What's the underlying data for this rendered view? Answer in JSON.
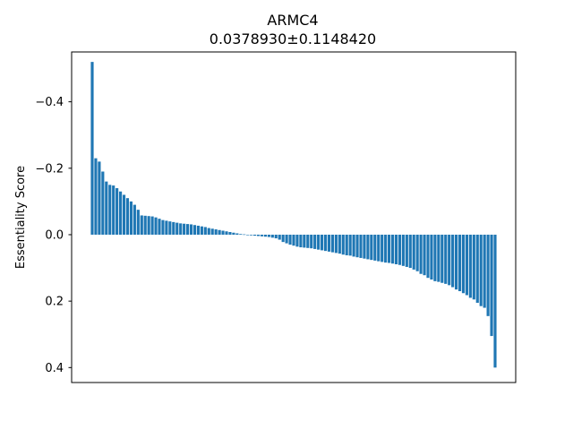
{
  "chart_data": {
    "type": "bar",
    "title": "ARMC4",
    "subtitle": "0.0378930±0.1148420",
    "xlabel": "",
    "ylabel": "Essentiality Score",
    "y_inverted": true,
    "ylim": [
      -0.55,
      0.445
    ],
    "yticks": [
      -0.4,
      -0.2,
      0.0,
      0.2,
      0.4
    ],
    "ytick_labels": [
      "−0.4",
      "−0.2",
      "0.0",
      "0.2",
      "0.4"
    ],
    "show_xticks": false,
    "grid": false,
    "bar_color": "#1f77b4",
    "values": [
      -0.52,
      -0.23,
      -0.22,
      -0.19,
      -0.16,
      -0.15,
      -0.148,
      -0.14,
      -0.13,
      -0.12,
      -0.11,
      -0.1,
      -0.09,
      -0.075,
      -0.058,
      -0.057,
      -0.056,
      -0.055,
      -0.052,
      -0.048,
      -0.044,
      -0.042,
      -0.04,
      -0.038,
      -0.036,
      -0.034,
      -0.033,
      -0.032,
      -0.031,
      -0.029,
      -0.027,
      -0.025,
      -0.023,
      -0.02,
      -0.018,
      -0.016,
      -0.014,
      -0.012,
      -0.01,
      -0.008,
      -0.006,
      -0.004,
      -0.002,
      -0.001,
      0.001,
      0.002,
      0.003,
      0.004,
      0.005,
      0.006,
      0.007,
      0.009,
      0.011,
      0.015,
      0.022,
      0.026,
      0.03,
      0.033,
      0.036,
      0.038,
      0.039,
      0.04,
      0.041,
      0.043,
      0.045,
      0.047,
      0.049,
      0.051,
      0.053,
      0.055,
      0.057,
      0.06,
      0.062,
      0.063,
      0.066,
      0.068,
      0.07,
      0.072,
      0.074,
      0.076,
      0.078,
      0.08,
      0.082,
      0.084,
      0.085,
      0.087,
      0.089,
      0.091,
      0.094,
      0.097,
      0.1,
      0.105,
      0.11,
      0.118,
      0.122,
      0.13,
      0.135,
      0.14,
      0.142,
      0.145,
      0.148,
      0.152,
      0.158,
      0.165,
      0.17,
      0.176,
      0.182,
      0.19,
      0.195,
      0.205,
      0.215,
      0.22,
      0.245,
      0.305,
      0.4
    ]
  }
}
